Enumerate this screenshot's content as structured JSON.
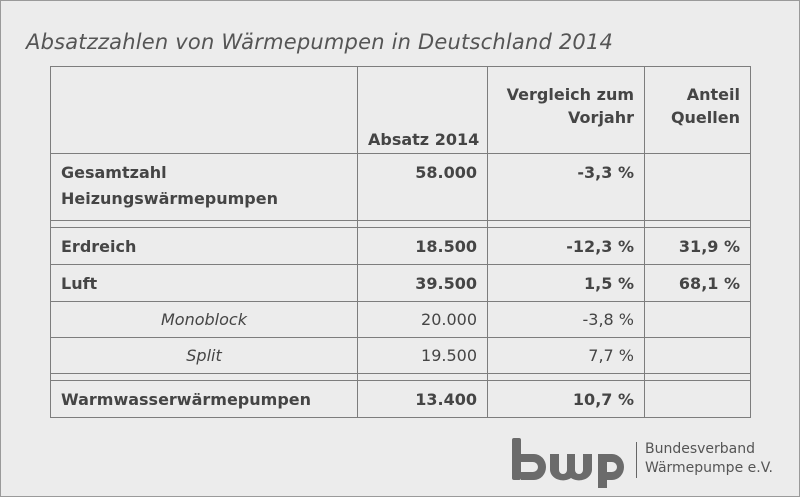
{
  "title": "Absatzzahlen von Wärmepumpen in Deutschland 2014",
  "table": {
    "headers": {
      "col2": "Absatz 2014",
      "col3": [
        "Vergleich zum",
        "Vorjahr"
      ],
      "col4": [
        "Anteil",
        "Quellen"
      ]
    },
    "rows": [
      {
        "label": [
          "Gesamtzahl",
          "Heizungswärmepumpen"
        ],
        "absatz": "58.000",
        "vergleich": "-3,3 %",
        "anteil": ""
      },
      {
        "label": "Erdreich",
        "absatz": "18.500",
        "vergleich": "-12,3 %",
        "anteil": "31,9 %"
      },
      {
        "label": "Luft",
        "absatz": "39.500",
        "vergleich": "1,5 %",
        "anteil": "68,1 %"
      },
      {
        "label": "Monoblock",
        "absatz": "20.000",
        "vergleich": "-3,8 %",
        "anteil": ""
      },
      {
        "label": "Split",
        "absatz": "19.500",
        "vergleich": "7,7 %",
        "anteil": ""
      },
      {
        "label": "Warmwasserwärmepumpen",
        "absatz": "13.400",
        "vergleich": "10,7 %",
        "anteil": ""
      }
    ]
  },
  "logo": {
    "mark": "bwp",
    "line1": "Bundesverband",
    "line2": "Wärmepumpe e.V.",
    "color": "#6b6b6b"
  }
}
